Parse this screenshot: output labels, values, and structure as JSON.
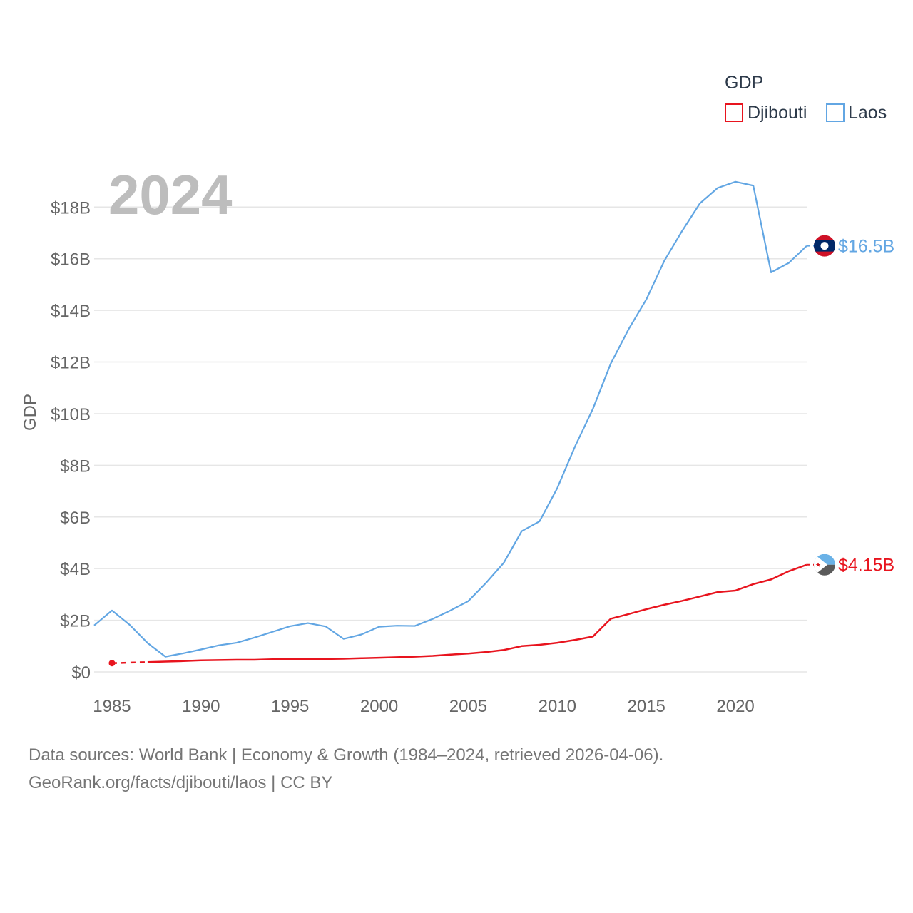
{
  "chart_data": {
    "type": "line",
    "big_year": "2024",
    "ylabel": "GDP",
    "ylim": [
      0,
      19500000000
    ],
    "xlim": [
      1984,
      2024
    ],
    "y_ticks": [
      {
        "value": 0,
        "label": "$0"
      },
      {
        "value": 2000000000,
        "label": "$2B"
      },
      {
        "value": 4000000000,
        "label": "$4B"
      },
      {
        "value": 6000000000,
        "label": "$6B"
      },
      {
        "value": 8000000000,
        "label": "$8B"
      },
      {
        "value": 10000000000,
        "label": "$10B"
      },
      {
        "value": 12000000000,
        "label": "$12B"
      },
      {
        "value": 14000000000,
        "label": "$14B"
      },
      {
        "value": 16000000000,
        "label": "$16B"
      },
      {
        "value": 18000000000,
        "label": "$18B"
      }
    ],
    "x_ticks": [
      {
        "value": 1985,
        "label": "1985"
      },
      {
        "value": 1990,
        "label": "1990"
      },
      {
        "value": 1995,
        "label": "1995"
      },
      {
        "value": 2000,
        "label": "2000"
      },
      {
        "value": 2005,
        "label": "2005"
      },
      {
        "value": 2010,
        "label": "2010"
      },
      {
        "value": 2015,
        "label": "2015"
      },
      {
        "value": 2020,
        "label": "2020"
      }
    ],
    "legend": {
      "title": "GDP",
      "position": "top-right",
      "entries": [
        {
          "name": "Djibouti",
          "color": "#e8141e"
        },
        {
          "name": "Laos",
          "color": "#62a6e3"
        }
      ]
    },
    "series": [
      {
        "name": "Laos",
        "color": "#62a6e3",
        "end_label": "$16.5B",
        "flag_icon": "laos-flag-icon",
        "points": [
          [
            1984,
            1800000000
          ],
          [
            1985,
            2380000000
          ],
          [
            1986,
            1820000000
          ],
          [
            1987,
            1120000000
          ],
          [
            1988,
            590000000
          ],
          [
            1989,
            720000000
          ],
          [
            1990,
            870000000
          ],
          [
            1991,
            1030000000
          ],
          [
            1992,
            1130000000
          ],
          [
            1993,
            1330000000
          ],
          [
            1994,
            1550000000
          ],
          [
            1995,
            1770000000
          ],
          [
            1996,
            1890000000
          ],
          [
            1997,
            1760000000
          ],
          [
            1998,
            1280000000
          ],
          [
            1999,
            1450000000
          ],
          [
            2000,
            1750000000
          ],
          [
            2001,
            1790000000
          ],
          [
            2002,
            1780000000
          ],
          [
            2003,
            2050000000
          ],
          [
            2004,
            2380000000
          ],
          [
            2005,
            2740000000
          ],
          [
            2006,
            3450000000
          ],
          [
            2007,
            4230000000
          ],
          [
            2008,
            5450000000
          ],
          [
            2009,
            5830000000
          ],
          [
            2010,
            7120000000
          ],
          [
            2011,
            8740000000
          ],
          [
            2012,
            10190000000
          ],
          [
            2013,
            11940000000
          ],
          [
            2014,
            13270000000
          ],
          [
            2015,
            14430000000
          ],
          [
            2016,
            15910000000
          ],
          [
            2017,
            17070000000
          ],
          [
            2018,
            18140000000
          ],
          [
            2019,
            18740000000
          ],
          [
            2020,
            18980000000
          ],
          [
            2021,
            18830000000
          ],
          [
            2022,
            15470000000
          ],
          [
            2023,
            15840000000
          ],
          [
            2024,
            16500000000
          ]
        ]
      },
      {
        "name": "Djibouti",
        "color": "#e8141e",
        "end_label": "$4.15B",
        "flag_icon": "djibouti-flag-icon",
        "gap_until": 1987,
        "points": [
          [
            1985,
            340000000
          ],
          [
            1987,
            380000000
          ],
          [
            1988,
            400000000
          ],
          [
            1989,
            420000000
          ],
          [
            1990,
            450000000
          ],
          [
            1991,
            460000000
          ],
          [
            1992,
            470000000
          ],
          [
            1993,
            470000000
          ],
          [
            1994,
            490000000
          ],
          [
            1995,
            500000000
          ],
          [
            1996,
            500000000
          ],
          [
            1997,
            500000000
          ],
          [
            1998,
            510000000
          ],
          [
            1999,
            530000000
          ],
          [
            2000,
            550000000
          ],
          [
            2001,
            570000000
          ],
          [
            2002,
            590000000
          ],
          [
            2003,
            620000000
          ],
          [
            2004,
            670000000
          ],
          [
            2005,
            710000000
          ],
          [
            2006,
            770000000
          ],
          [
            2007,
            850000000
          ],
          [
            2008,
            1000000000
          ],
          [
            2009,
            1050000000
          ],
          [
            2010,
            1130000000
          ],
          [
            2011,
            1240000000
          ],
          [
            2012,
            1370000000
          ],
          [
            2013,
            2060000000
          ],
          [
            2014,
            2240000000
          ],
          [
            2015,
            2430000000
          ],
          [
            2016,
            2600000000
          ],
          [
            2017,
            2750000000
          ],
          [
            2018,
            2920000000
          ],
          [
            2019,
            3090000000
          ],
          [
            2020,
            3150000000
          ],
          [
            2021,
            3400000000
          ],
          [
            2022,
            3580000000
          ],
          [
            2023,
            3900000000
          ],
          [
            2024,
            4150000000
          ]
        ]
      }
    ]
  },
  "footer": {
    "source_line": "Data sources: World Bank | Economy & Growth (1984–2024, retrieved 2026-04-06).",
    "credit_line": "GeoRank.org/facts/djibouti/laos | CC BY"
  }
}
